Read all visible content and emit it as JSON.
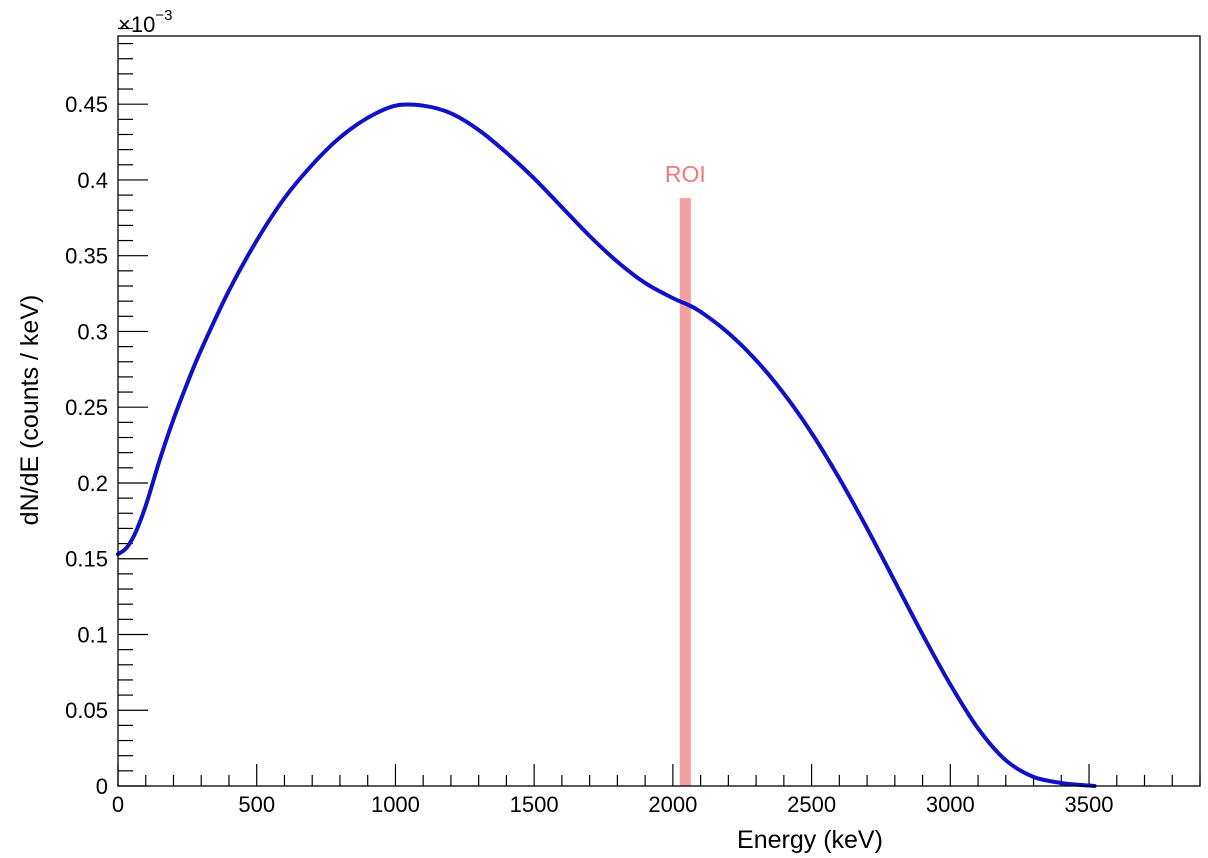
{
  "chart_data": {
    "type": "line",
    "title": "",
    "xlabel": "Energy (keV)",
    "ylabel": "dN/dE (counts / keV)",
    "y_multiplier_label": "×10",
    "y_multiplier_exponent": "−3",
    "xlim": [
      0,
      3900
    ],
    "ylim": [
      0,
      0.495
    ],
    "x_ticks": [
      0,
      500,
      1000,
      1500,
      2000,
      2500,
      3000,
      3500
    ],
    "x_tick_labels": [
      "0",
      "500",
      "1000",
      "1500",
      "2000",
      "2500",
      "3000",
      "3500"
    ],
    "y_ticks": [
      0,
      0.05,
      0.1,
      0.15,
      0.2,
      0.25,
      0.3,
      0.35,
      0.4,
      0.45
    ],
    "y_tick_labels": [
      "0",
      "0.05",
      "0.1",
      "0.15",
      "0.2",
      "0.25",
      "0.3",
      "0.35",
      "0.4",
      "0.45"
    ],
    "grid": false,
    "series": [
      {
        "color": "#1010c8",
        "x": [
          0,
          30,
          60,
          100,
          150,
          200,
          250,
          300,
          400,
          500,
          600,
          700,
          800,
          900,
          1000,
          1100,
          1200,
          1300,
          1400,
          1500,
          1600,
          1700,
          1800,
          1900,
          2000,
          2050,
          2100,
          2200,
          2300,
          2400,
          2500,
          2600,
          2700,
          2800,
          2900,
          3000,
          3100,
          3200,
          3300,
          3400,
          3450,
          3500,
          3520
        ],
        "y": [
          0.153,
          0.157,
          0.166,
          0.185,
          0.215,
          0.242,
          0.266,
          0.288,
          0.327,
          0.36,
          0.388,
          0.41,
          0.428,
          0.441,
          0.449,
          0.449,
          0.444,
          0.433,
          0.418,
          0.401,
          0.382,
          0.363,
          0.346,
          0.332,
          0.322,
          0.318,
          0.313,
          0.299,
          0.281,
          0.259,
          0.233,
          0.203,
          0.17,
          0.135,
          0.1,
          0.067,
          0.038,
          0.017,
          0.006,
          0.002,
          0.001,
          0.0003,
          0.0
        ]
      }
    ],
    "annotations": [
      {
        "text": "ROI",
        "x_range": [
          2025,
          2065
        ],
        "y_top": 0.388,
        "color": "#f4a0a0",
        "text_color": "#f07a7a"
      }
    ]
  }
}
